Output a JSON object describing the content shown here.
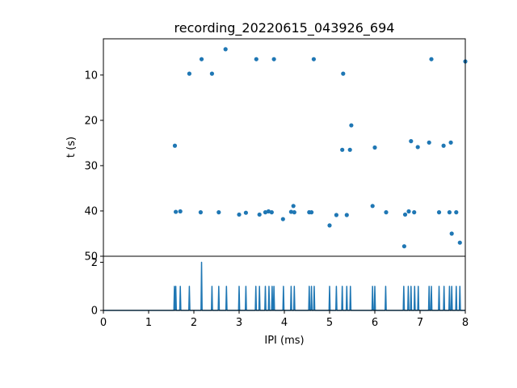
{
  "chart_data": [
    {
      "type": "scatter",
      "title": "recording_20220615_043926_694",
      "ylabel": "t (s)",
      "xlim": [
        0,
        8
      ],
      "ylim": [
        50,
        2
      ],
      "y_inverted": true,
      "yticks": [
        "10",
        "20",
        "30",
        "40",
        "50"
      ],
      "color": "#1f77b4",
      "points": [
        [
          1.58,
          25.6
        ],
        [
          1.6,
          40.2
        ],
        [
          1.7,
          40.1
        ],
        [
          1.9,
          9.7
        ],
        [
          2.15,
          40.3
        ],
        [
          2.17,
          6.5
        ],
        [
          2.4,
          9.7
        ],
        [
          2.55,
          40.3
        ],
        [
          2.7,
          4.3
        ],
        [
          3.0,
          40.8
        ],
        [
          3.15,
          40.4
        ],
        [
          3.38,
          6.5
        ],
        [
          3.45,
          40.8
        ],
        [
          3.58,
          40.3
        ],
        [
          3.65,
          40.1
        ],
        [
          3.72,
          40.3
        ],
        [
          3.77,
          6.5
        ],
        [
          3.97,
          41.8
        ],
        [
          4.15,
          40.2
        ],
        [
          4.2,
          38.9
        ],
        [
          4.22,
          40.3
        ],
        [
          4.55,
          40.3
        ],
        [
          4.6,
          40.3
        ],
        [
          4.65,
          6.5
        ],
        [
          5.0,
          43.2
        ],
        [
          5.15,
          40.9
        ],
        [
          5.3,
          9.7
        ],
        [
          5.28,
          26.5
        ],
        [
          5.38,
          40.9
        ],
        [
          5.45,
          26.5
        ],
        [
          5.48,
          21.1
        ],
        [
          5.95,
          38.9
        ],
        [
          6.0,
          26.0
        ],
        [
          6.25,
          40.3
        ],
        [
          6.65,
          47.8
        ],
        [
          6.67,
          40.8
        ],
        [
          6.75,
          40.1
        ],
        [
          6.8,
          24.6
        ],
        [
          6.87,
          40.3
        ],
        [
          6.95,
          25.9
        ],
        [
          7.2,
          24.9
        ],
        [
          7.25,
          6.5
        ],
        [
          7.42,
          40.3
        ],
        [
          7.52,
          25.6
        ],
        [
          7.65,
          40.3
        ],
        [
          7.68,
          24.9
        ],
        [
          7.7,
          45.0
        ],
        [
          7.8,
          40.3
        ],
        [
          7.88,
          47.0
        ],
        [
          8.0,
          7.0
        ]
      ]
    },
    {
      "type": "line",
      "xlabel": "IPI (ms)",
      "xlim": [
        0,
        8
      ],
      "ylim": [
        0,
        2.25
      ],
      "xticks": [
        "0",
        "1",
        "2",
        "3",
        "4",
        "5",
        "6",
        "7",
        "8"
      ],
      "yticks": [
        "0",
        "2"
      ],
      "color": "#1f77b4",
      "spikes": [
        [
          1.57,
          1
        ],
        [
          1.6,
          1
        ],
        [
          1.7,
          1
        ],
        [
          1.9,
          1
        ],
        [
          2.17,
          2
        ],
        [
          2.4,
          1
        ],
        [
          2.55,
          1
        ],
        [
          2.72,
          1
        ],
        [
          3.0,
          1
        ],
        [
          3.15,
          1
        ],
        [
          3.37,
          1
        ],
        [
          3.45,
          1
        ],
        [
          3.58,
          1
        ],
        [
          3.66,
          1
        ],
        [
          3.73,
          1
        ],
        [
          3.77,
          1
        ],
        [
          3.98,
          1
        ],
        [
          4.15,
          1
        ],
        [
          4.22,
          1
        ],
        [
          4.55,
          1
        ],
        [
          4.6,
          1
        ],
        [
          4.66,
          1
        ],
        [
          5.0,
          1
        ],
        [
          5.15,
          1
        ],
        [
          5.28,
          1
        ],
        [
          5.38,
          1
        ],
        [
          5.46,
          1
        ],
        [
          5.95,
          1
        ],
        [
          6.0,
          1
        ],
        [
          6.24,
          1
        ],
        [
          6.64,
          1
        ],
        [
          6.74,
          1
        ],
        [
          6.8,
          1
        ],
        [
          6.88,
          1
        ],
        [
          6.96,
          1
        ],
        [
          7.2,
          1
        ],
        [
          7.25,
          1
        ],
        [
          7.42,
          1
        ],
        [
          7.53,
          1
        ],
        [
          7.65,
          1
        ],
        [
          7.7,
          1
        ],
        [
          7.8,
          1
        ],
        [
          7.88,
          1
        ]
      ]
    }
  ]
}
